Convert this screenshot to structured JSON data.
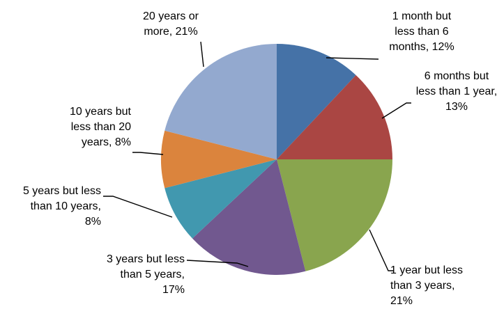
{
  "chart_data": {
    "type": "pie",
    "title": "",
    "start_angle_deg": 0,
    "direction": "clockwise",
    "slices": [
      {
        "label_lines": [
          "1 month but",
          "less than 6",
          "months, 12%"
        ],
        "value": 12,
        "color": "#4572A7"
      },
      {
        "label_lines": [
          "6 months but",
          "less than 1 year,",
          "13%"
        ],
        "value": 13,
        "color": "#AA4643"
      },
      {
        "label_lines": [
          "1 year but less",
          "than 3 years,",
          "21%"
        ],
        "value": 21,
        "color": "#89A54E"
      },
      {
        "label_lines": [
          "3 years but less",
          "than 5 years,",
          "17%"
        ],
        "value": 17,
        "color": "#71588F"
      },
      {
        "label_lines": [
          "5 years but less",
          "than 10 years,",
          "8%"
        ],
        "value": 8,
        "color": "#4198AF"
      },
      {
        "label_lines": [
          "10 years but",
          "less than 20",
          "years, 8%"
        ],
        "value": 8,
        "color": "#DB843D"
      },
      {
        "label_lines": [
          "20 years or",
          "more, 21%"
        ],
        "value": 21,
        "color": "#93A9CF"
      }
    ]
  }
}
